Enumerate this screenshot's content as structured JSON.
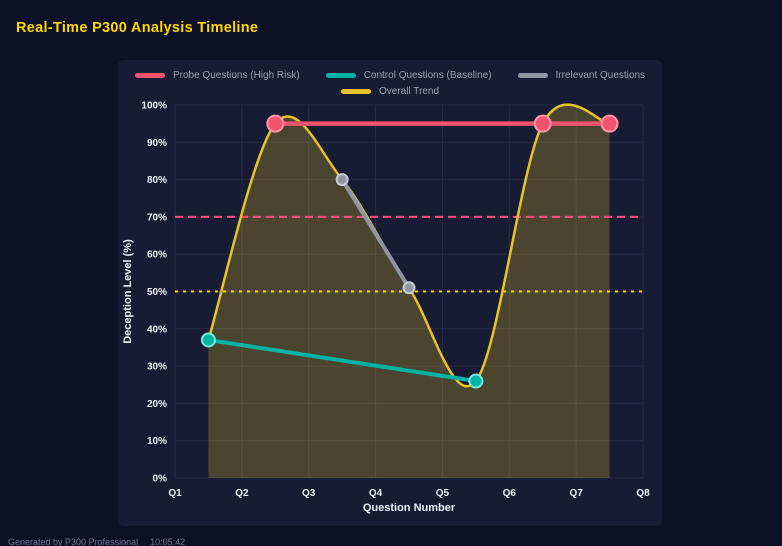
{
  "page": {
    "title": "Real-Time P300 Analysis Timeline",
    "footer": "Generated by P300 Professional",
    "footer_time": "10:05:42"
  },
  "colors": {
    "background": "#0e1126",
    "panel": "#171b33",
    "grid": "#262b47",
    "title": "#ffd700",
    "tick_label": "#eef1f7",
    "legend_text": "#9aa0b4"
  },
  "chart_data": {
    "type": "line",
    "title": "Real-Time P300 Analysis Timeline",
    "xlabel": "Question Number",
    "ylabel": "Deception Level (%)",
    "x_ticks": [
      "Q1",
      "Q2",
      "Q3",
      "Q4",
      "Q5",
      "Q6",
      "Q7",
      "Q8"
    ],
    "y_ticks": [
      "0%",
      "10%",
      "20%",
      "30%",
      "40%",
      "50%",
      "60%",
      "70%",
      "80%",
      "90%",
      "100%"
    ],
    "xlim": [
      1,
      8
    ],
    "ylim": [
      0,
      100
    ],
    "grid": true,
    "legend_position": "top",
    "series": [
      {
        "id": "probe",
        "name": "Probe Questions (High Risk)",
        "color": "#f4536e",
        "marker_stroke": "#ff93a5",
        "x": [
          2.5,
          6.5,
          7.5
        ],
        "y": [
          95,
          95,
          95
        ],
        "width": 4.5,
        "marker_r": 8,
        "smooth": false,
        "fill": false
      },
      {
        "id": "control",
        "name": "Control Questions (Baseline)",
        "color": "#00b3a4",
        "marker_stroke": "#7ae8dc",
        "x": [
          1.5,
          5.5
        ],
        "y": [
          37,
          26
        ],
        "width": 4,
        "marker_r": 6.5,
        "smooth": false,
        "fill": false
      },
      {
        "id": "irrelevant",
        "name": "Irrelevant Questions",
        "color": "#8f95a3",
        "marker_stroke": "#c9cdd8",
        "x": [
          3.5,
          4.5
        ],
        "y": [
          80,
          51
        ],
        "width": 4,
        "marker_r": 5.5,
        "smooth": false,
        "fill": false
      },
      {
        "id": "trend",
        "name": "Overall Trend",
        "color": "#e8c227",
        "marker_stroke": "",
        "x": [
          1.5,
          2.5,
          3.5,
          4.5,
          5.5,
          6.5,
          7.5
        ],
        "y": [
          37,
          95,
          80,
          51,
          26,
          95,
          95
        ],
        "width": 2.5,
        "marker_r": 0,
        "smooth": true,
        "fill": true
      }
    ],
    "thresholds": [
      {
        "value": 70,
        "color": "#ff4d7d",
        "dash": "8 5"
      },
      {
        "value": 50,
        "color": "#ffd60a",
        "dash": "3 5"
      }
    ],
    "area_fill_opacity": 0.25
  }
}
